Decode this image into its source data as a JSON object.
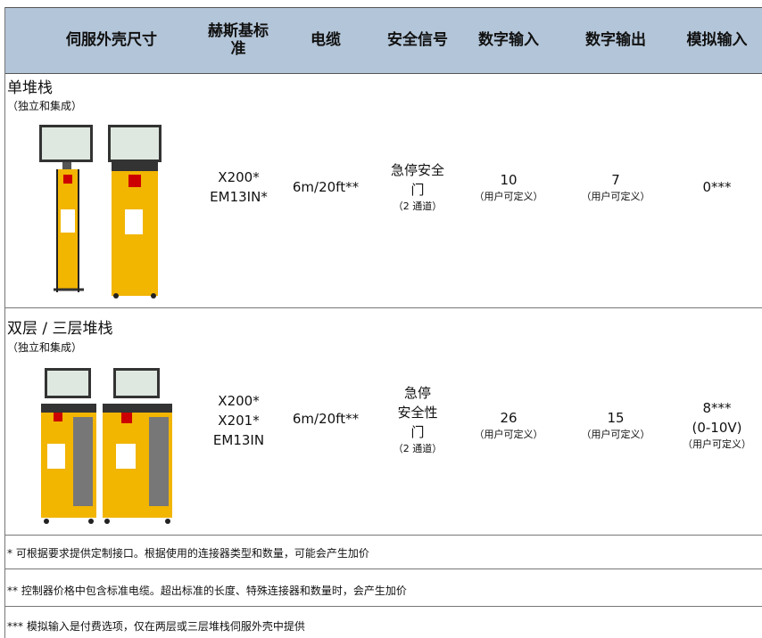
{
  "header": {
    "columns": [
      "伺服外壳尺寸",
      "赫斯基标准",
      "电缆",
      "安全信号",
      "数字输入",
      "数字输出",
      "模拟输入"
    ]
  },
  "rows": [
    {
      "group": "单堆栈",
      "note": "（独立和集成）",
      "standard": [
        "X200*",
        "EM13IN*"
      ],
      "cable": "6m/20ft**",
      "safety": [
        "急停安全",
        "门"
      ],
      "safety_note": "（2 通道）",
      "din": "10",
      "din_note": "（用户可定义）",
      "dout": "7",
      "dout_note": "（用户可定义）",
      "ain": [
        "0***"
      ]
    },
    {
      "group": "双层 / 三层堆栈",
      "note": "（独立和集成）",
      "standard": [
        "X200*",
        "X201*",
        "EM13IN"
      ],
      "cable": "6m/20ft**",
      "safety": [
        "急停",
        "安全性",
        "门"
      ],
      "safety_note": "（2 通道）",
      "din": "26",
      "din_note": "（用户可定义）",
      "dout": "15",
      "dout_note": "（用户可定义）",
      "ain": [
        "8***",
        "(0-10V)"
      ],
      "ain_note": "（用户可定义）"
    }
  ],
  "footnotes": [
    "* 可根据要求提供定制接口。根据使用的连接器类型和数量，可能会产生加价",
    "** 控制器价格中包含标准电缆。超出标准的长度、特殊连接器和数量时，会产生加价",
    "*** 模拟输入是付费选项，仅在两层或三层堆栈伺服外壳中提供"
  ]
}
